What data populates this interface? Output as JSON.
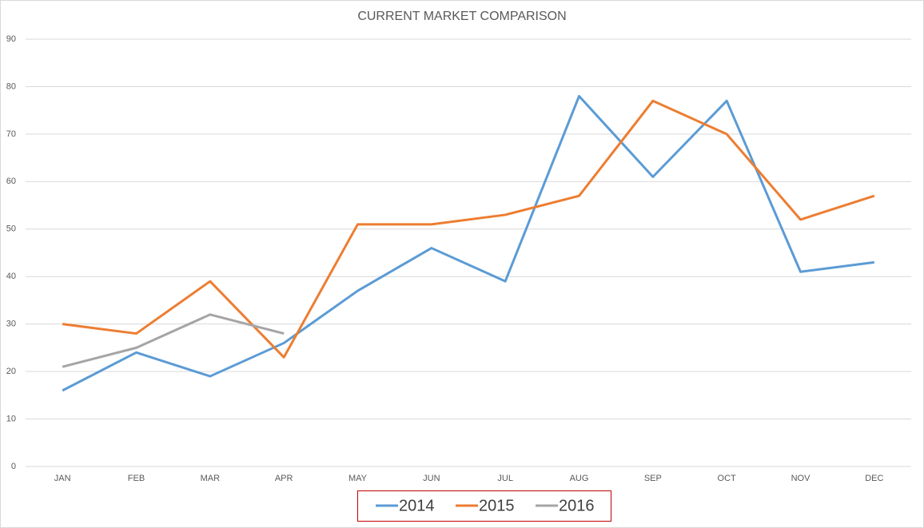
{
  "chart_data": {
    "type": "line",
    "title": "CURRENT MARKET COMPARISON",
    "categories": [
      "JAN",
      "FEB",
      "MAR",
      "APR",
      "MAY",
      "JUN",
      "JUL",
      "AUG",
      "SEP",
      "OCT",
      "NOV",
      "DEC"
    ],
    "series": [
      {
        "name": "2014",
        "color": "#5b9bd5",
        "values": [
          16,
          24,
          19,
          26,
          37,
          46,
          39,
          78,
          61,
          77,
          41,
          43
        ]
      },
      {
        "name": "2015",
        "color": "#ed7d31",
        "values": [
          30,
          28,
          39,
          23,
          51,
          51,
          53,
          57,
          77,
          70,
          52,
          57
        ]
      },
      {
        "name": "2016",
        "color": "#a5a5a5",
        "values": [
          21,
          25,
          32,
          28,
          null,
          null,
          null,
          null,
          null,
          null,
          null,
          null
        ]
      }
    ],
    "ylim": [
      0,
      90
    ],
    "yticks": [
      0,
      10,
      20,
      30,
      40,
      50,
      60,
      70,
      80,
      90
    ],
    "grid": true,
    "legend": "bottom"
  }
}
